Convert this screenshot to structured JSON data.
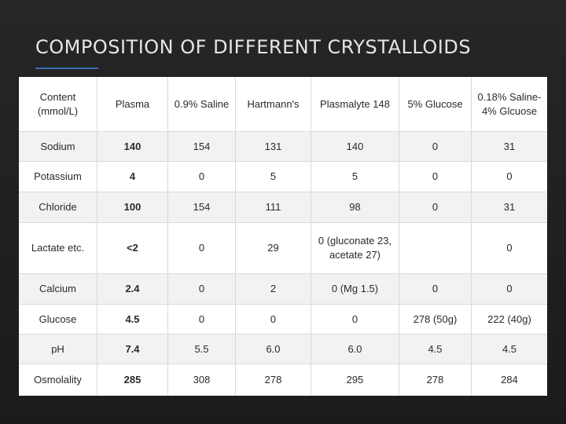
{
  "title": "COMPOSITION OF DIFFERENT CRYSTALLOIDS",
  "table": {
    "headers": [
      "Content (mmol/L)",
      "Plasma",
      "0.9% Saline",
      "Hartmann's",
      "Plasmalyte 148",
      "5% Glucose",
      "0.18% Saline-4% Glcuose"
    ],
    "rows": [
      [
        "Sodium",
        "140",
        "154",
        "131",
        "140",
        "0",
        "31"
      ],
      [
        "Potassium",
        "4",
        "0",
        "5",
        "5",
        "0",
        "0"
      ],
      [
        "Chloride",
        "100",
        "154",
        "111",
        "98",
        "0",
        "31"
      ],
      [
        "Lactate etc.",
        "<2",
        "0",
        "29",
        "0 (gluconate 23, acetate 27)",
        "",
        "0"
      ],
      [
        "Calcium",
        "2.4",
        "0",
        "2",
        "0 (Mg 1.5)",
        "0",
        "0"
      ],
      [
        "Glucose",
        "4.5",
        "0",
        "0",
        "0",
        "278 (50g)",
        "222 (40g)"
      ],
      [
        "pH",
        "7.4",
        "5.5",
        "6.0",
        "6.0",
        "4.5",
        "4.5"
      ],
      [
        "Osmolality",
        "285",
        "308",
        "278",
        "295",
        "278",
        "284"
      ]
    ]
  }
}
